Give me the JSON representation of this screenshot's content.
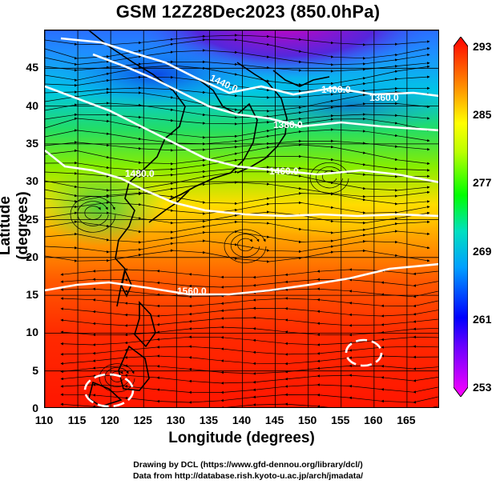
{
  "title": "GSM 12Z28Dec2023 (850.0hPa)",
  "axes": {
    "x_label": "Longitude (degrees)",
    "y_label": "Latitude (degrees)",
    "x_ticks": [
      "110",
      "115",
      "120",
      "125",
      "130",
      "135",
      "140",
      "145",
      "150",
      "155",
      "160",
      "165"
    ],
    "y_ticks": [
      "0",
      "5",
      "10",
      "15",
      "20",
      "25",
      "30",
      "35",
      "40",
      "45"
    ],
    "x_range": [
      110,
      170
    ],
    "y_range": [
      0,
      50
    ]
  },
  "colorbar": {
    "ticks": [
      "253",
      "261",
      "269",
      "277",
      "285",
      "293"
    ],
    "range": [
      253,
      293
    ],
    "colors": [
      "#ff00ff",
      "#0000ff",
      "#00bfff",
      "#00ff00",
      "#ffff00",
      "#ff8c00",
      "#ff0000"
    ]
  },
  "contour_labels": [
    "1440.0",
    "1400.0",
    "1360.0",
    "1380.0",
    "1480.0",
    "1460.0",
    "1560.0"
  ],
  "credits": {
    "line1": "Drawing by DCL (https://www.gfd-dennou.org/library/dcl/)",
    "line2": "Data from http://database.rish.kyoto-u.ac.jp/arch/jmadata/"
  }
}
